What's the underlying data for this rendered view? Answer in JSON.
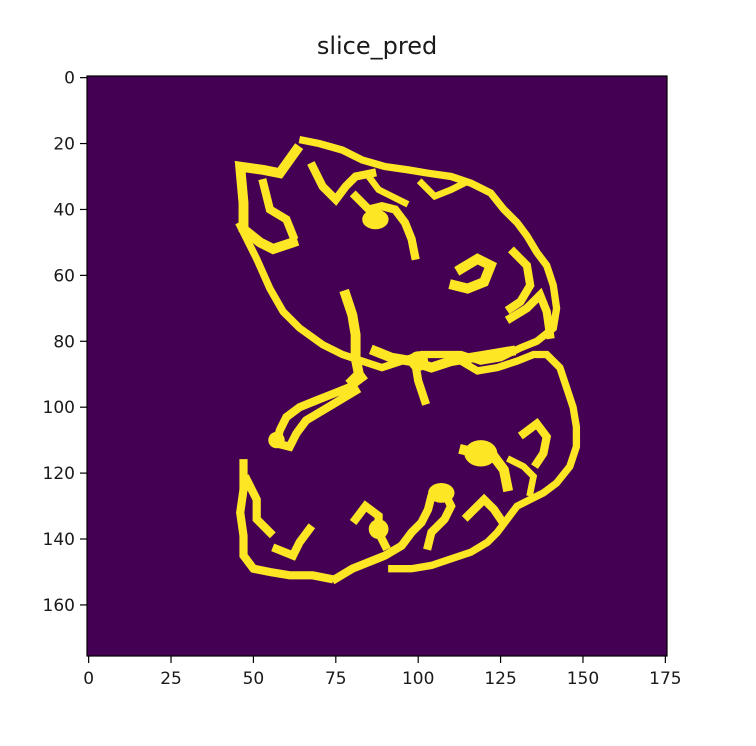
{
  "chart_data": {
    "type": "heatmap",
    "title": "slice_pred",
    "xlabel": "",
    "ylabel": "",
    "xlim": [
      -0.5,
      175.5
    ],
    "ylim": [
      175.5,
      -0.5
    ],
    "x_ticks": [
      0,
      25,
      50,
      75,
      100,
      125,
      150,
      175
    ],
    "y_ticks": [
      0,
      20,
      40,
      60,
      80,
      100,
      120,
      140,
      160
    ],
    "grid": false,
    "legend": "none",
    "colors": {
      "background_value_0": "#440154",
      "foreground_value_1": "#fde725"
    },
    "values": "binary segmentation mask: 176x176, value 1 traces a brain cortex outline in the upper-right/right region (rows ~20-152, columns ~46-143), 0 elsewhere",
    "mask_strokes": [
      {
        "points": [
          [
            63,
            22
          ],
          [
            58,
            29
          ],
          [
            53,
            28
          ],
          [
            46,
            27
          ],
          [
            47,
            38
          ],
          [
            47,
            46
          ],
          [
            52,
            50
          ],
          [
            56,
            52
          ],
          [
            62,
            50
          ]
        ],
        "width": 3
      },
      {
        "points": [
          [
            53,
            32
          ],
          [
            55,
            40
          ],
          [
            60,
            43
          ],
          [
            62,
            48
          ]
        ],
        "width": 2.5
      },
      {
        "points": [
          [
            46,
            45
          ],
          [
            51,
            55
          ],
          [
            55,
            64
          ],
          [
            59,
            71
          ],
          [
            64,
            76
          ],
          [
            71,
            81
          ],
          [
            77,
            84
          ],
          [
            83,
            86
          ],
          [
            89,
            88
          ],
          [
            95,
            86
          ],
          [
            101,
            84
          ],
          [
            107,
            84
          ],
          [
            113,
            84
          ],
          [
            119,
            86
          ],
          [
            125,
            85
          ],
          [
            131,
            82
          ],
          [
            136,
            80
          ],
          [
            141,
            76
          ],
          [
            142,
            70
          ],
          [
            141,
            63
          ],
          [
            139,
            57
          ],
          [
            136,
            53
          ],
          [
            133,
            48
          ],
          [
            130,
            44
          ],
          [
            126,
            40
          ],
          [
            122,
            35
          ],
          [
            116,
            32
          ],
          [
            110,
            30
          ],
          [
            103,
            29
          ],
          [
            97,
            28
          ],
          [
            90,
            27
          ],
          [
            83,
            25
          ],
          [
            77,
            22
          ],
          [
            70,
            20
          ],
          [
            65,
            19
          ]
        ],
        "width": 2.2
      },
      {
        "points": [
          [
            68,
            27
          ],
          [
            71,
            33
          ],
          [
            75,
            37
          ],
          [
            78,
            33
          ],
          [
            81,
            30
          ],
          [
            86,
            29
          ]
        ],
        "width": 2.5
      },
      {
        "points": [
          [
            81,
            36
          ],
          [
            85,
            40
          ],
          [
            89,
            39
          ],
          [
            93,
            40
          ],
          [
            96,
            44
          ],
          [
            98,
            49
          ],
          [
            99,
            54
          ]
        ],
        "width": 2.5
      },
      {
        "points": [
          [
            85,
            30
          ],
          [
            88,
            34
          ],
          [
            92,
            36
          ],
          [
            96,
            38
          ]
        ],
        "width": 2
      },
      {
        "points": [
          [
            101,
            32
          ],
          [
            105,
            36
          ],
          [
            110,
            34
          ],
          [
            114,
            32
          ]
        ],
        "width": 2
      },
      {
        "points": [
          [
            113,
            58
          ],
          [
            118,
            55
          ],
          [
            122,
            57
          ],
          [
            120,
            62
          ],
          [
            115,
            64
          ],
          [
            111,
            63
          ]
        ],
        "width": 3
      },
      {
        "points": [
          [
            129,
            53
          ],
          [
            133,
            57
          ],
          [
            134,
            63
          ],
          [
            131,
            68
          ],
          [
            128,
            70
          ]
        ],
        "width": 2.5
      },
      {
        "points": [
          [
            128,
            73
          ],
          [
            133,
            70
          ],
          [
            137,
            66
          ],
          [
            139,
            71
          ],
          [
            140,
            78
          ]
        ],
        "width": 2.5
      },
      {
        "points": [
          [
            78,
            66
          ],
          [
            80,
            72
          ],
          [
            81,
            78
          ],
          [
            81,
            85
          ],
          [
            82,
            90
          ],
          [
            80,
            92
          ]
        ],
        "width": 3
      },
      {
        "points": [
          [
            83,
            91
          ],
          [
            79,
            94
          ],
          [
            74,
            96
          ],
          [
            69,
            98
          ],
          [
            64,
            100
          ],
          [
            60,
            103
          ],
          [
            58,
            107
          ],
          [
            57,
            111
          ],
          [
            61,
            112
          ],
          [
            63,
            108
          ],
          [
            66,
            104
          ],
          [
            71,
            101
          ],
          [
            76,
            98
          ],
          [
            81,
            95
          ]
        ],
        "width": 2.5
      },
      {
        "points": [
          [
            87,
            83
          ],
          [
            92,
            85
          ],
          [
            98,
            86
          ],
          [
            104,
            88
          ],
          [
            110,
            86
          ],
          [
            116,
            85
          ],
          [
            122,
            84
          ],
          [
            128,
            83
          ]
        ],
        "width": 3
      },
      {
        "points": [
          [
            99,
            86
          ],
          [
            100,
            92
          ],
          [
            102,
            98
          ]
        ],
        "width": 2.5
      },
      {
        "points": [
          [
            113,
            86
          ],
          [
            118,
            89
          ],
          [
            124,
            88
          ],
          [
            130,
            86
          ],
          [
            135,
            84
          ],
          [
            139,
            84
          ],
          [
            143,
            88
          ],
          [
            145,
            94
          ],
          [
            147,
            100
          ],
          [
            148,
            106
          ],
          [
            148,
            112
          ],
          [
            146,
            118
          ],
          [
            142,
            123
          ],
          [
            138,
            126
          ],
          [
            134,
            128
          ],
          [
            130,
            130
          ],
          [
            127,
            134
          ],
          [
            124,
            138
          ],
          [
            121,
            141
          ],
          [
            116,
            144
          ],
          [
            110,
            146
          ],
          [
            104,
            148
          ],
          [
            98,
            149
          ],
          [
            92,
            149
          ]
        ],
        "width": 2.2
      },
      {
        "points": [
          [
            132,
            108
          ],
          [
            136,
            105
          ],
          [
            139,
            109
          ],
          [
            138,
            114
          ],
          [
            136,
            117
          ]
        ],
        "width": 2.5
      },
      {
        "points": [
          [
            128,
            116
          ],
          [
            132,
            118
          ],
          [
            135,
            121
          ],
          [
            134,
            126
          ]
        ],
        "width": 2
      },
      {
        "points": [
          [
            114,
            113
          ],
          [
            118,
            114
          ],
          [
            123,
            115
          ],
          [
            126,
            119
          ],
          [
            127,
            124
          ]
        ],
        "width": 3
      },
      {
        "points": [
          [
            115,
            133
          ],
          [
            118,
            130
          ],
          [
            120,
            128
          ],
          [
            123,
            131
          ],
          [
            125,
            134
          ]
        ],
        "width": 2.5
      },
      {
        "points": [
          [
            47,
            117
          ],
          [
            47,
            125
          ],
          [
            46,
            132
          ],
          [
            47,
            139
          ],
          [
            47,
            145
          ],
          [
            50,
            149
          ],
          [
            55,
            150
          ],
          [
            61,
            151
          ],
          [
            68,
            151
          ],
          [
            73,
            152
          ]
        ],
        "width": 2.5
      },
      {
        "points": [
          [
            48,
            122
          ],
          [
            51,
            128
          ],
          [
            51,
            134
          ],
          [
            55,
            138
          ]
        ],
        "width": 2.5
      },
      {
        "points": [
          [
            57,
            143
          ],
          [
            62,
            145
          ],
          [
            64,
            141
          ],
          [
            67,
            137
          ]
        ],
        "width": 2.5
      },
      {
        "points": [
          [
            75,
            152
          ],
          [
            80,
            149
          ],
          [
            85,
            147
          ],
          [
            90,
            145
          ],
          [
            95,
            142
          ],
          [
            98,
            138
          ],
          [
            101,
            135
          ],
          [
            103,
            131
          ],
          [
            104,
            127
          ],
          [
            106,
            125
          ]
        ],
        "width": 2.5
      },
      {
        "points": [
          [
            81,
            134
          ],
          [
            84,
            130
          ],
          [
            88,
            133
          ],
          [
            88,
            138
          ],
          [
            90,
            142
          ]
        ],
        "width": 2.5
      },
      {
        "points": [
          [
            108,
            126
          ],
          [
            110,
            130
          ],
          [
            108,
            134
          ],
          [
            104,
            138
          ],
          [
            103,
            142
          ]
        ],
        "width": 2.5
      }
    ],
    "mask_blobs": [
      {
        "cx": 87,
        "cy": 43,
        "rx": 4,
        "ry": 3
      },
      {
        "cx": 119,
        "cy": 114,
        "rx": 5,
        "ry": 4
      },
      {
        "cx": 107,
        "cy": 126,
        "rx": 4,
        "ry": 3
      },
      {
        "cx": 88,
        "cy": 137,
        "rx": 3,
        "ry": 3
      },
      {
        "cx": 100,
        "cy": 86,
        "rx": 3,
        "ry": 3
      },
      {
        "cx": 57,
        "cy": 110,
        "rx": 2.5,
        "ry": 2.5
      }
    ]
  }
}
